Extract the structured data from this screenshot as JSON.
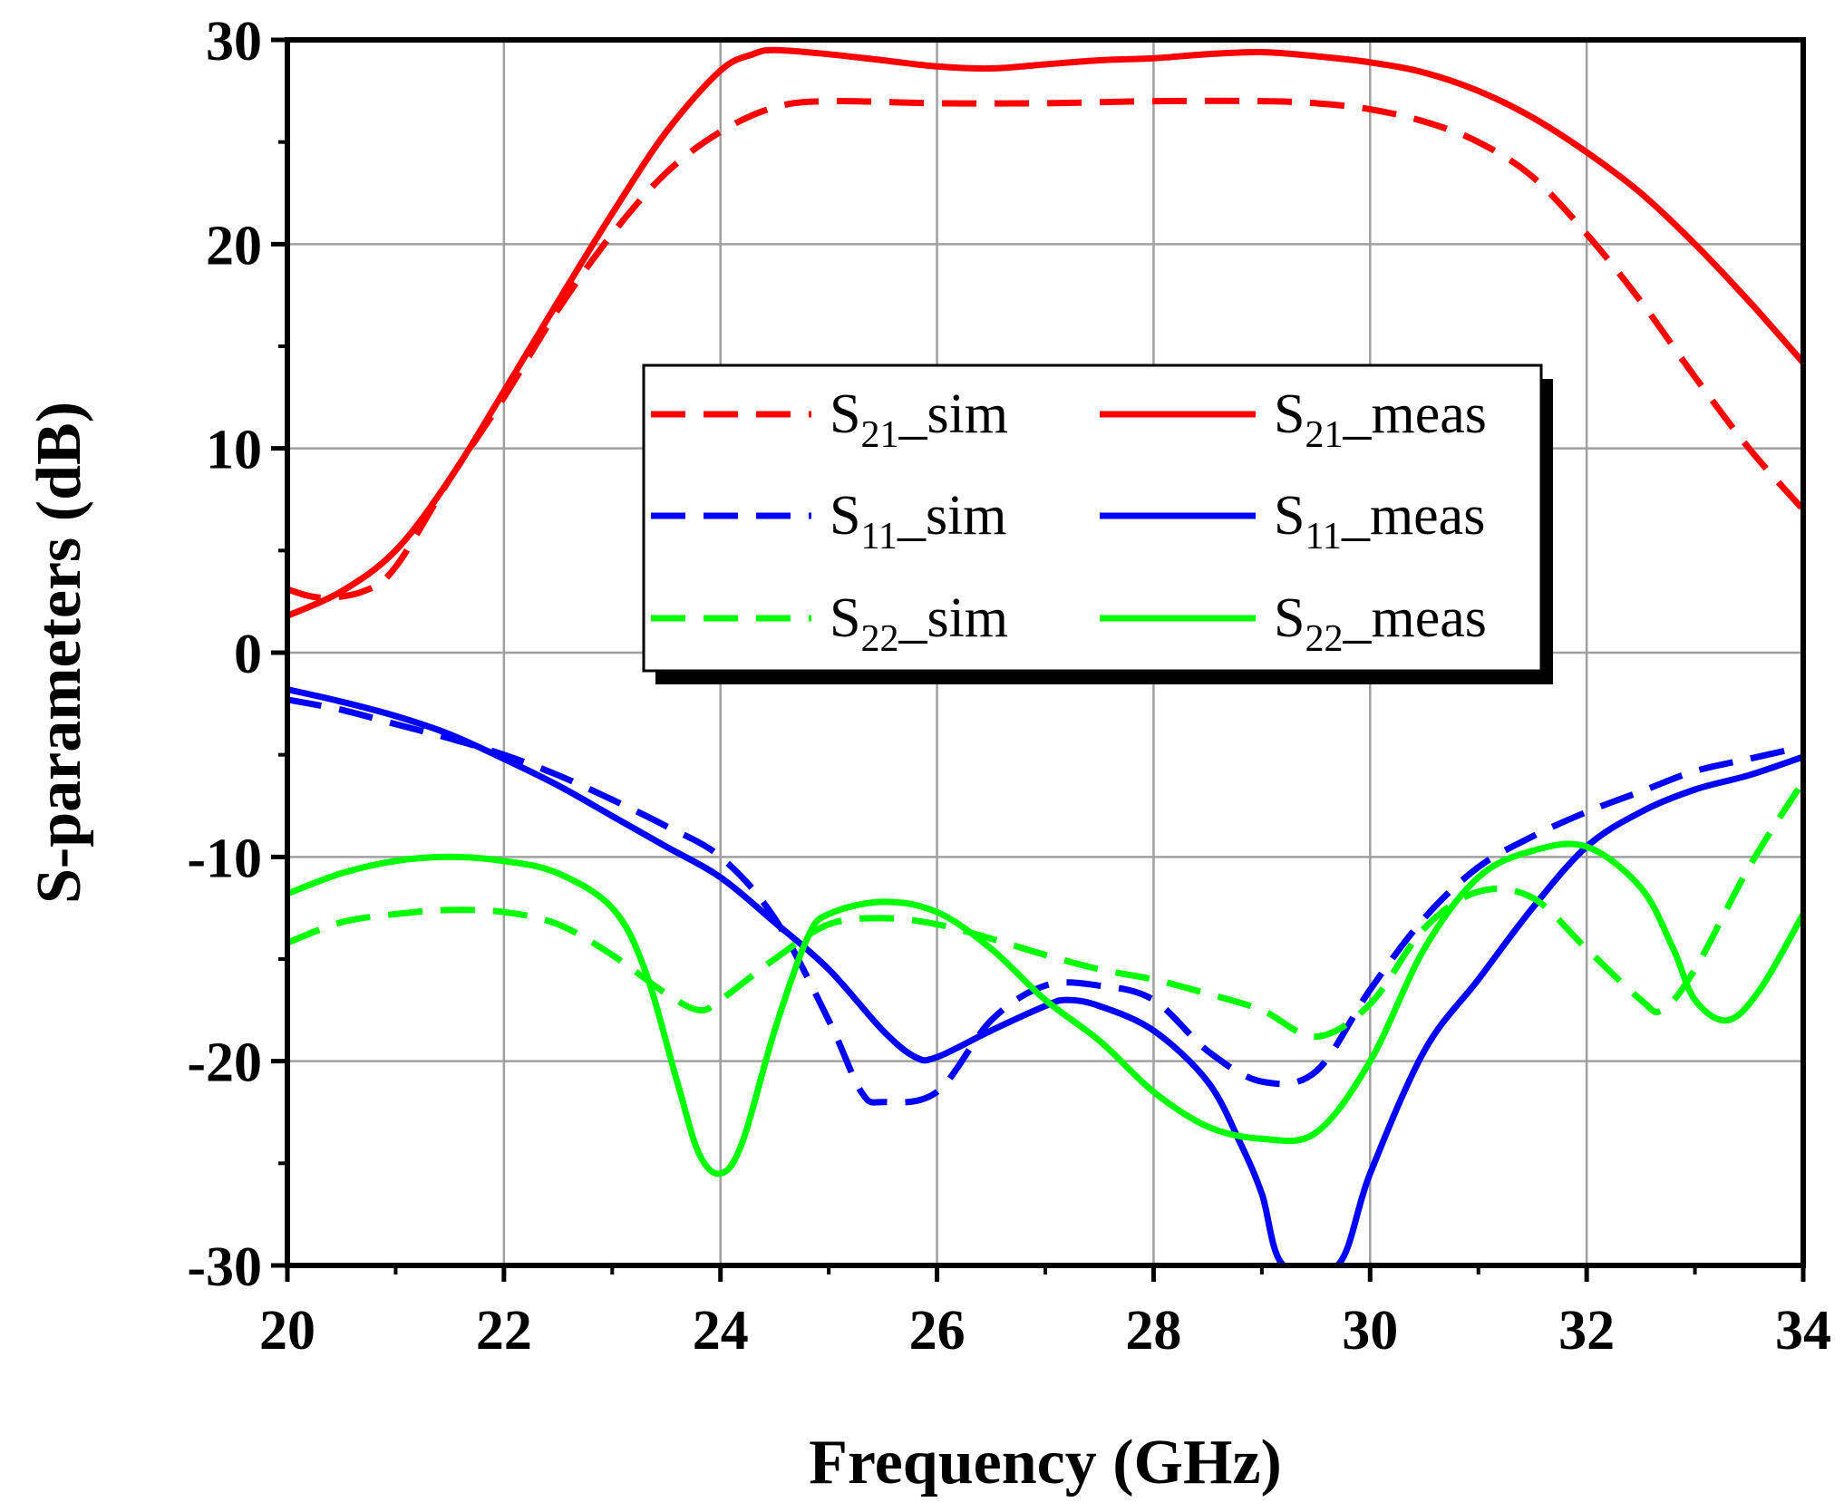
{
  "chart_data": {
    "type": "line",
    "title": "",
    "xlabel": "Frequency (GHz)",
    "ylabel": "S-parameters (dB)",
    "xlim": [
      20,
      34
    ],
    "ylim": [
      -30,
      30
    ],
    "xticks": [
      20,
      22,
      24,
      26,
      28,
      30,
      32,
      34
    ],
    "yticks": [
      30,
      20,
      10,
      0,
      -10,
      -20,
      -30
    ],
    "xtick_labels": [
      "20",
      "22",
      "24",
      "26",
      "28",
      "30",
      "32",
      "34"
    ],
    "ytick_labels": [
      "30",
      "20",
      "10",
      "0",
      "-10",
      "-20",
      "-30"
    ],
    "grid": true,
    "legend_position": "center",
    "colors": {
      "red": "#ff0000",
      "blue": "#0000ff",
      "green": "#00ff00",
      "grid": "#a0a0a0",
      "axis": "#000000"
    },
    "series": [
      {
        "name": "S21_sim",
        "label_main": "S",
        "label_sub": "21",
        "label_suffix": "_sim",
        "color": "#ff0000",
        "dash": true,
        "x": [
          20,
          20.3,
          20.7,
          21,
          21.5,
          22,
          22.5,
          23,
          23.5,
          24,
          24.5,
          25,
          26,
          27,
          28,
          29,
          29.5,
          30,
          30.5,
          31,
          31.5,
          32,
          32.5,
          33,
          33.5,
          34
        ],
        "y": [
          3.1,
          2.7,
          3.0,
          4.2,
          8.5,
          12.5,
          16.8,
          20.5,
          23.5,
          25.5,
          26.7,
          27.0,
          26.9,
          26.9,
          27.0,
          27.0,
          26.9,
          26.6,
          26.0,
          25.0,
          23.3,
          20.5,
          17.2,
          13.5,
          10.0,
          7.0
        ]
      },
      {
        "name": "S21_meas",
        "label_main": "S",
        "label_sub": "21",
        "label_suffix": "_meas",
        "color": "#ff0000",
        "dash": false,
        "x": [
          20,
          20.5,
          21,
          21.5,
          22,
          22.5,
          23,
          23.5,
          24,
          24.3,
          24.5,
          25,
          25.5,
          26,
          26.5,
          27,
          27.5,
          28,
          28.5,
          29,
          29.5,
          30,
          30.5,
          31,
          31.5,
          32,
          32.5,
          33,
          33.5,
          34
        ],
        "y": [
          1.8,
          3.0,
          5.0,
          8.5,
          12.8,
          17.2,
          21.5,
          25.5,
          28.5,
          29.3,
          29.5,
          29.3,
          29.0,
          28.7,
          28.6,
          28.8,
          29.0,
          29.1,
          29.3,
          29.4,
          29.2,
          28.9,
          28.4,
          27.5,
          26.2,
          24.5,
          22.5,
          20.0,
          17.2,
          14.2
        ]
      },
      {
        "name": "S11_sim",
        "label_main": "S",
        "label_sub": "11",
        "label_suffix": "_sim",
        "color": "#0000ff",
        "dash": true,
        "x": [
          20,
          20.5,
          21,
          21.5,
          22,
          22.5,
          23,
          23.5,
          24,
          24.5,
          25,
          25.3,
          25.5,
          26,
          26.5,
          27,
          27.5,
          28,
          28.5,
          29,
          29.5,
          30,
          30.5,
          31,
          31.5,
          32,
          32.5,
          33,
          33.5,
          34
        ],
        "y": [
          -2.3,
          -2.8,
          -3.5,
          -4.2,
          -5.0,
          -6.0,
          -7.2,
          -8.5,
          -10.0,
          -13.0,
          -18.0,
          -21.5,
          -22.0,
          -21.5,
          -18.0,
          -16.3,
          -16.3,
          -17.0,
          -19.5,
          -21.0,
          -20.5,
          -16.5,
          -13.0,
          -10.5,
          -9.0,
          -7.8,
          -6.8,
          -5.8,
          -5.2,
          -4.6
        ]
      },
      {
        "name": "S11_meas",
        "label_main": "S",
        "label_sub": "11",
        "label_suffix": "_meas",
        "color": "#0000ff",
        "dash": false,
        "x": [
          20,
          20.5,
          21,
          21.5,
          22,
          22.5,
          23,
          23.5,
          24,
          24.5,
          25,
          25.5,
          25.8,
          26,
          26.5,
          27,
          27.2,
          27.5,
          28,
          28.5,
          28.8,
          29,
          29.2,
          29.7,
          30,
          30.5,
          31,
          31.5,
          32,
          32.5,
          33,
          33.5,
          34
        ],
        "y": [
          -1.8,
          -2.4,
          -3.1,
          -4.0,
          -5.2,
          -6.5,
          -8.0,
          -9.5,
          -11.0,
          -13.2,
          -15.5,
          -18.5,
          -19.8,
          -19.8,
          -18.5,
          -17.3,
          -17.0,
          -17.3,
          -18.5,
          -21.0,
          -24.0,
          -26.5,
          -30.0,
          -30.0,
          -25.5,
          -19.5,
          -16.0,
          -12.5,
          -9.5,
          -7.8,
          -6.7,
          -6.0,
          -5.1
        ]
      },
      {
        "name": "S22_sim",
        "label_main": "S",
        "label_sub": "22",
        "label_suffix": "_sim",
        "color": "#00ff00",
        "dash": true,
        "x": [
          20,
          20.5,
          21,
          21.5,
          22,
          22.5,
          23,
          23.5,
          23.8,
          24,
          24.5,
          25,
          25.5,
          26,
          26.5,
          27,
          27.5,
          28,
          28.5,
          29,
          29.5,
          30,
          30.5,
          31,
          31.5,
          32,
          32.5,
          32.7,
          33,
          33.5,
          34
        ],
        "y": [
          -14.2,
          -13.2,
          -12.8,
          -12.6,
          -12.7,
          -13.3,
          -14.8,
          -16.7,
          -17.5,
          -17.0,
          -15.0,
          -13.3,
          -13.0,
          -13.3,
          -14.0,
          -14.8,
          -15.5,
          -16.0,
          -16.7,
          -17.5,
          -18.8,
          -17.2,
          -13.5,
          -11.7,
          -12.0,
          -14.5,
          -17.0,
          -17.5,
          -15.5,
          -10.5,
          -6.3
        ]
      },
      {
        "name": "S22_meas",
        "label_main": "S",
        "label_sub": "22",
        "label_suffix": "_meas",
        "color": "#00ff00",
        "dash": false,
        "x": [
          20,
          20.5,
          21,
          21.5,
          22,
          22.5,
          23,
          23.3,
          23.6,
          23.8,
          24,
          24.2,
          24.5,
          24.8,
          25,
          25.5,
          26,
          26.5,
          27,
          27.5,
          28,
          28.5,
          29,
          29.5,
          30,
          30.5,
          31,
          31.5,
          32,
          32.5,
          32.8,
          33,
          33.3,
          33.6,
          34
        ],
        "y": [
          -11.8,
          -10.8,
          -10.2,
          -10.0,
          -10.2,
          -10.8,
          -12.5,
          -15.5,
          -21.0,
          -24.5,
          -25.5,
          -24.0,
          -18.5,
          -14.0,
          -12.8,
          -12.2,
          -12.7,
          -14.5,
          -17.0,
          -19.0,
          -21.5,
          -23.2,
          -23.8,
          -23.5,
          -20.0,
          -14.5,
          -11.0,
          -9.7,
          -9.5,
          -11.5,
          -14.5,
          -17.0,
          -18.0,
          -16.5,
          -12.8
        ]
      }
    ]
  }
}
